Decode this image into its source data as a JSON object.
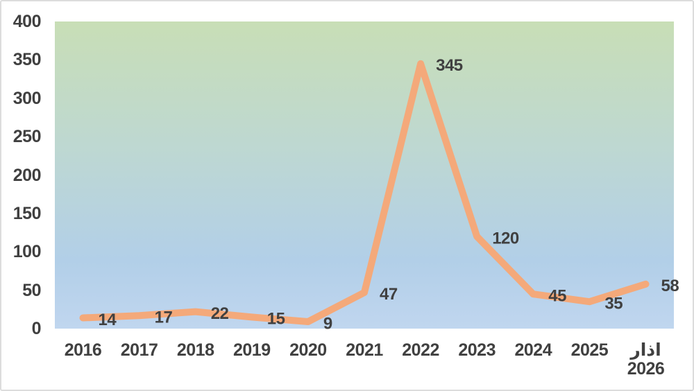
{
  "chart_data": {
    "type": "line",
    "title": "",
    "categories": [
      "2016",
      "2017",
      "2018",
      "2019",
      "2020",
      "2021",
      "2022",
      "2023",
      "2024",
      "2025",
      "اذار\n2026"
    ],
    "series": [
      {
        "values": [
          14,
          17,
          22,
          15,
          9,
          47,
          345,
          120,
          45,
          35,
          58
        ]
      }
    ],
    "ylim": [
      0,
      400
    ],
    "ytick_step": 50,
    "ytick_labels": [
      "0",
      "50",
      "100",
      "150",
      "200",
      "250",
      "300",
      "350",
      "400"
    ],
    "grid": false,
    "legend": false,
    "data_labels": true,
    "data_label_position": "right",
    "colors": {
      "line": "#f4a97a",
      "label_text": "#404040",
      "plot_gradient_top": "#c8deb6",
      "plot_gradient_mid": "#bed8d1",
      "plot_gradient_low": "#b2cfe8",
      "plot_gradient_bottom": "#c0d6ef",
      "background": "#ffffff",
      "border": "#dcdcdc"
    }
  }
}
